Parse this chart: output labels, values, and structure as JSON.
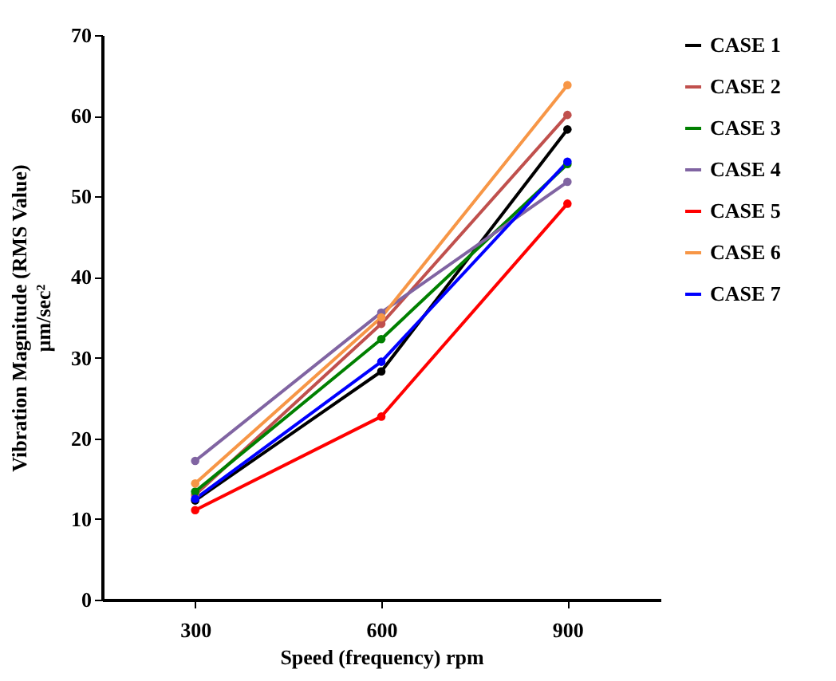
{
  "chart_data": {
    "type": "line",
    "xlabel": "Speed (frequency) rpm",
    "ylabel": [
      "Vibration Magnitude (RMS Value)",
      "µm/sec²"
    ],
    "categories": [
      "300",
      "600",
      "900"
    ],
    "ylim": [
      0,
      70
    ],
    "yticks": [
      0,
      10,
      20,
      30,
      40,
      50,
      60,
      70
    ],
    "grid": false,
    "legend": "right",
    "marker": "circle",
    "line_style": "solid",
    "series": [
      {
        "name": "CASE 1",
        "color": "#000000",
        "values": [
          12.3,
          28.3,
          58.3
        ]
      },
      {
        "name": "CASE 2",
        "color": "#c0504d",
        "values": [
          13.0,
          34.2,
          60.1
        ]
      },
      {
        "name": "CASE 3",
        "color": "#008000",
        "values": [
          13.4,
          32.3,
          54.0
        ]
      },
      {
        "name": "CASE 4",
        "color": "#8064a2",
        "values": [
          17.2,
          35.6,
          51.8
        ]
      },
      {
        "name": "CASE 5",
        "color": "#ff0000",
        "values": [
          11.1,
          22.7,
          49.1
        ]
      },
      {
        "name": "CASE 6",
        "color": "#f79646",
        "values": [
          14.4,
          35.0,
          63.8
        ]
      },
      {
        "name": "CASE 7",
        "color": "#0000ff",
        "values": [
          12.5,
          29.5,
          54.3
        ]
      }
    ]
  }
}
